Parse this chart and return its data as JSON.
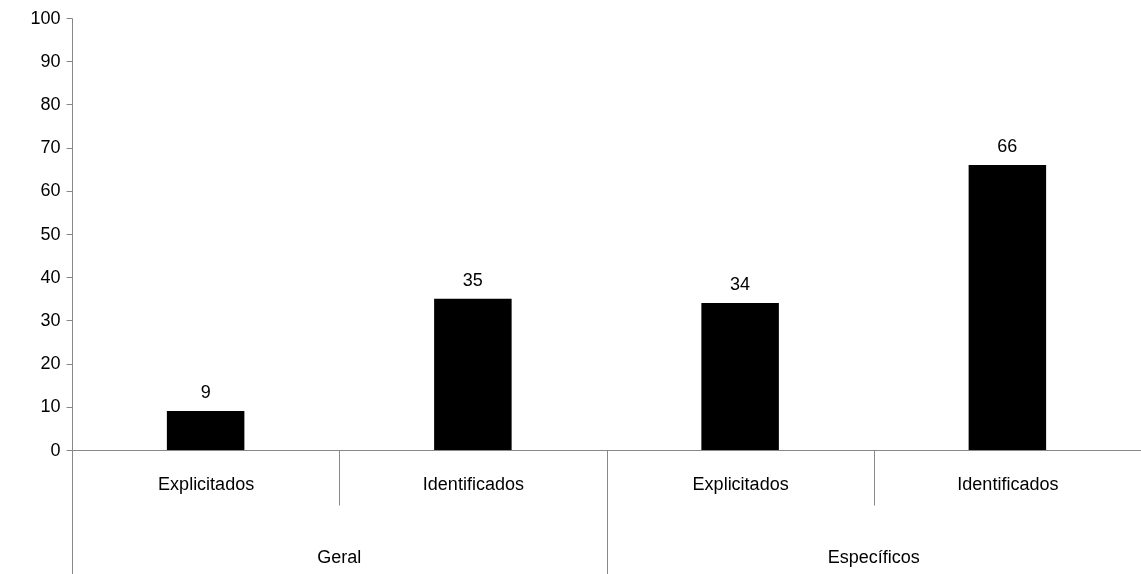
{
  "chart_data": {
    "type": "bar",
    "categories": [
      "Explicitados",
      "Identificados",
      "Explicitados",
      "Identificados"
    ],
    "values": [
      9,
      35,
      34,
      66
    ],
    "color": "#000000",
    "ylim": [
      0,
      100
    ],
    "yticks": [
      0,
      10,
      20,
      30,
      40,
      50,
      60,
      70,
      80,
      90,
      100
    ],
    "data_labels": true,
    "annotations": [
      "Geral",
      "Específicos"
    ]
  }
}
